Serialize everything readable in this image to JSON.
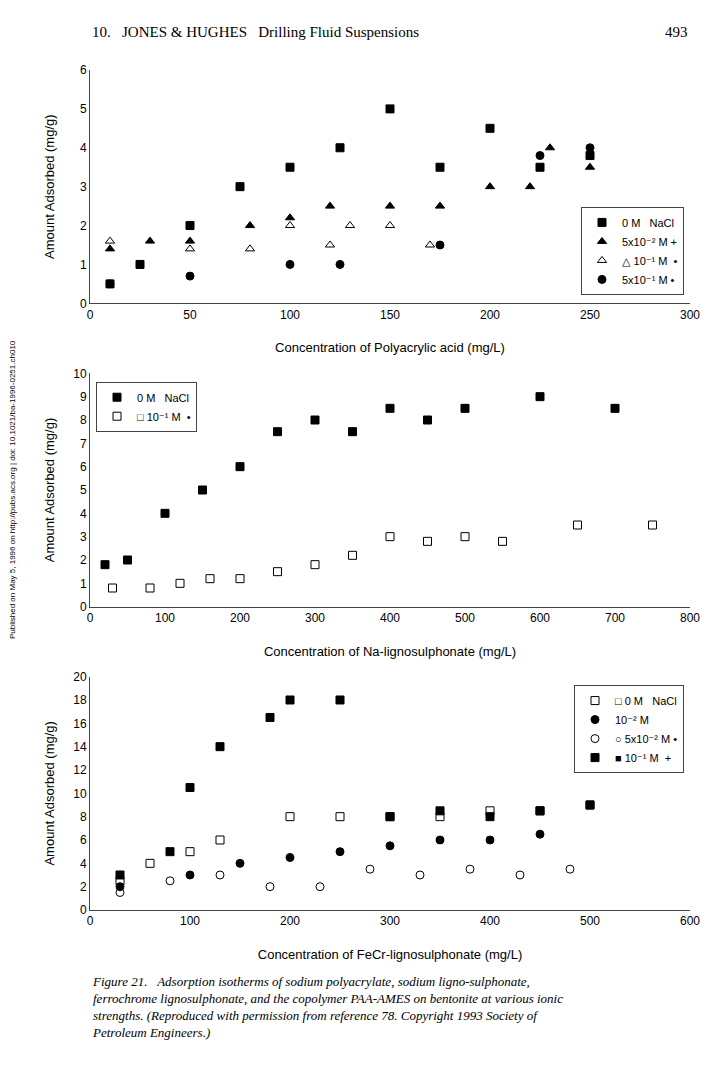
{
  "chart_data": [
    {
      "type": "scatter",
      "xlabel": "Concentration of Polyacrylic acid (mg/L)",
      "ylabel": "Amount Adsorbed (mg/g)",
      "xlim": [
        0,
        300
      ],
      "ylim": [
        0,
        6
      ],
      "xticks": [
        0,
        50,
        100,
        150,
        200,
        250,
        300
      ],
      "yticks": [
        0,
        1,
        2,
        3,
        4,
        5,
        6
      ],
      "grid": false,
      "legend": "lower right",
      "annotations": [
        "10.   JONES & HUGHES   Drilling Fluid Suspensions",
        "493",
        "Published on May 5, 1996 on http://pubs.acs.org | doi: 10.1021/ba-1996-0251.ch010"
      ],
      "series": [
        {
          "name": "0 M   NaCl",
          "color": "black",
          "marker": "square",
          "x": [
            10,
            25,
            50,
            75,
            100,
            125,
            150,
            175,
            200,
            225,
            250
          ],
          "y": [
            0.5,
            1.0,
            2.0,
            3.0,
            3.5,
            4.0,
            5.0,
            3.5,
            4.5,
            3.5,
            3.8
          ]
        },
        {
          "name": "5x10⁻² M +",
          "color": "black",
          "marker": "triangle-up",
          "x": [
            10,
            30,
            50,
            80,
            100,
            120,
            150,
            175,
            200,
            220,
            230,
            250
          ],
          "y": [
            1.4,
            1.6,
            1.6,
            2.0,
            2.2,
            2.5,
            2.5,
            2.5,
            3.0,
            3.0,
            4.0,
            3.5
          ]
        },
        {
          "name": "△ 10⁻¹ M  •",
          "color": "black",
          "marker": "triangle-up-open",
          "x": [
            10,
            50,
            80,
            100,
            120,
            130,
            150,
            170
          ],
          "y": [
            1.6,
            1.4,
            1.4,
            2.0,
            1.5,
            2.0,
            2.0,
            1.5
          ]
        },
        {
          "name": "5x10⁻¹ M •",
          "color": "black",
          "marker": "circle",
          "x": [
            10,
            50,
            100,
            125,
            175,
            225,
            250
          ],
          "y": [
            0.5,
            0.7,
            1.0,
            1.0,
            1.5,
            3.8,
            4.0
          ]
        }
      ]
    },
    {
      "type": "scatter",
      "xlabel": "Concentration of Na-lignosulphonate (mg/L)",
      "ylabel": "Amount Adsorbed (mg/g)",
      "xlim": [
        0,
        800
      ],
      "ylim": [
        0,
        10
      ],
      "xticks": [
        0,
        100,
        200,
        300,
        400,
        500,
        600,
        700,
        800
      ],
      "yticks": [
        0,
        1,
        2,
        3,
        4,
        5,
        6,
        7,
        8,
        9,
        10
      ],
      "grid": false,
      "legend": "upper left",
      "series": [
        {
          "name": "0 M   NaCl",
          "color": "black",
          "marker": "square",
          "x": [
            20,
            50,
            100,
            150,
            200,
            250,
            300,
            350,
            400,
            450,
            500,
            600,
            700
          ],
          "y": [
            1.8,
            2.0,
            4.0,
            5.0,
            6.0,
            7.5,
            8.0,
            7.5,
            8.5,
            8.0,
            8.5,
            9.0,
            8.5
          ]
        },
        {
          "name": "□ 10⁻¹ M  •",
          "color": "black",
          "marker": "square-open",
          "x": [
            30,
            80,
            120,
            160,
            200,
            250,
            300,
            350,
            400,
            450,
            500,
            550,
            650,
            750
          ],
          "y": [
            0.8,
            0.8,
            1.0,
            1.2,
            1.2,
            1.5,
            1.8,
            2.2,
            3.0,
            2.8,
            3.0,
            2.8,
            3.5,
            3.5
          ]
        }
      ]
    },
    {
      "type": "scatter",
      "xlabel": "Concentration of FeCr-lignosulphonate (mg/L)",
      "ylabel": "Amount Adsorbed (mg/g)",
      "xlim": [
        0,
        600
      ],
      "ylim": [
        0,
        20
      ],
      "xticks": [
        0,
        100,
        200,
        300,
        400,
        500,
        600
      ],
      "yticks": [
        0,
        2,
        4,
        6,
        8,
        10,
        12,
        14,
        16,
        18,
        20
      ],
      "grid": false,
      "legend": "upper right",
      "annotations": [
        "Figure 21.   Adsorption isotherms of sodium polyacrylate, sodium ligno-sulphonate, ferrochrome lignosulphonate, and the copolymer PAA-AMES on bentonite at various ionic strengths. (Reproduced with permission from reference 78. Copyright 1993 Society of Petroleum Engineers.)"
      ],
      "series": [
        {
          "name": "□ 0 M   NaCl",
          "color": "black",
          "marker": "square-open",
          "x": [
            30,
            60,
            100,
            130,
            200,
            250,
            300,
            350,
            400,
            450,
            500
          ],
          "y": [
            2.5,
            4.0,
            5.0,
            6.0,
            8.0,
            8.0,
            8.0,
            8.0,
            8.5,
            8.5,
            9.0
          ]
        },
        {
          "name": "10⁻² M",
          "color": "black",
          "marker": "circle",
          "x": [
            30,
            100,
            150,
            200,
            250,
            300,
            350,
            400,
            450
          ],
          "y": [
            2.0,
            3.0,
            4.0,
            4.5,
            5.0,
            5.5,
            6.0,
            6.0,
            6.5
          ]
        },
        {
          "name": "○ 5x10⁻² M •",
          "color": "black",
          "marker": "circle-open",
          "x": [
            30,
            80,
            130,
            180,
            230,
            280,
            330,
            380,
            430,
            480
          ],
          "y": [
            1.5,
            2.5,
            3.0,
            2.0,
            2.0,
            3.5,
            3.0,
            3.5,
            3.0,
            3.5
          ]
        },
        {
          "name": "■ 10⁻¹ M  +",
          "color": "black",
          "marker": "square",
          "x": [
            30,
            80,
            100,
            130,
            180,
            200,
            250,
            300,
            350,
            400,
            450,
            500
          ],
          "y": [
            3.0,
            5.0,
            10.5,
            14.0,
            16.5,
            18.0,
            18.0,
            8.0,
            8.5,
            8.0,
            8.5,
            9.0
          ]
        }
      ]
    }
  ]
}
